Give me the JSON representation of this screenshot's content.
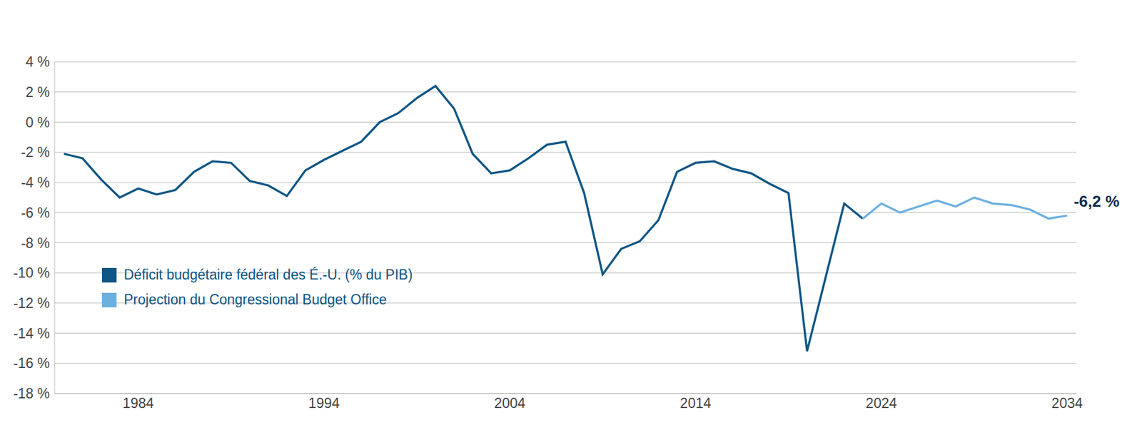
{
  "chart_data": {
    "type": "line",
    "x": [
      1980,
      1981,
      1982,
      1983,
      1984,
      1985,
      1986,
      1987,
      1988,
      1989,
      1990,
      1991,
      1992,
      1993,
      1994,
      1995,
      1996,
      1997,
      1998,
      1999,
      2000,
      2001,
      2002,
      2003,
      2004,
      2005,
      2006,
      2007,
      2008,
      2009,
      2010,
      2011,
      2012,
      2013,
      2014,
      2015,
      2016,
      2017,
      2018,
      2019,
      2020,
      2021,
      2022,
      2023,
      2024,
      2025,
      2026,
      2027,
      2028,
      2029,
      2030,
      2031,
      2032,
      2033,
      2034
    ],
    "series": [
      {
        "name": "Déficit budgétaire fédéral des É.-U. (% du PIB)",
        "color": "#0d5585",
        "values": [
          -2.1,
          -2.4,
          -3.8,
          -5.0,
          -4.4,
          -4.8,
          -4.5,
          -3.3,
          -2.6,
          -2.7,
          -3.9,
          -4.2,
          -4.9,
          -3.2,
          -2.5,
          -1.9,
          -1.3,
          0.0,
          0.6,
          1.6,
          2.4,
          0.9,
          -2.1,
          -3.4,
          -3.2,
          -2.4,
          -1.5,
          -1.3,
          -4.7,
          -10.1,
          -8.4,
          -7.9,
          -6.5,
          -3.3,
          -2.7,
          -2.6,
          -3.1,
          -3.4,
          -4.1,
          -4.7,
          -15.2,
          -10.3,
          -5.4,
          -6.4,
          null,
          null,
          null,
          null,
          null,
          null,
          null,
          null,
          null,
          null,
          null
        ]
      },
      {
        "name": "Projection du Congressional Budget Office",
        "color": "#6cb0e0",
        "values": [
          null,
          null,
          null,
          null,
          null,
          null,
          null,
          null,
          null,
          null,
          null,
          null,
          null,
          null,
          null,
          null,
          null,
          null,
          null,
          null,
          null,
          null,
          null,
          null,
          null,
          null,
          null,
          null,
          null,
          null,
          null,
          null,
          null,
          null,
          null,
          null,
          null,
          null,
          null,
          null,
          null,
          null,
          null,
          -6.4,
          -5.4,
          -6.0,
          -5.6,
          -5.2,
          -5.6,
          -5.0,
          -5.4,
          -5.5,
          -5.8,
          -6.4,
          -6.2
        ]
      }
    ],
    "xlim": [
      1979.5,
      2034.5
    ],
    "xticks": [
      1984,
      1994,
      2004,
      2014,
      2024,
      2034
    ],
    "ylim": [
      -18,
      4
    ],
    "yticks": [
      {
        "value": -18,
        "label": "-18 %"
      },
      {
        "value": -16,
        "label": "-16 %"
      },
      {
        "value": -14,
        "label": "-14 %"
      },
      {
        "value": -12,
        "label": "-12 %"
      },
      {
        "value": -10,
        "label": "-10 %"
      },
      {
        "value": -8,
        "label": "-8 %"
      },
      {
        "value": -6,
        "label": "-6 %"
      },
      {
        "value": -4,
        "label": "-4 %"
      },
      {
        "value": -2,
        "label": "-2 %"
      },
      {
        "value": 0,
        "label": "0 %"
      },
      {
        "value": 2,
        "label": "2 %"
      },
      {
        "value": 4,
        "label": "4 %"
      }
    ],
    "grid": true,
    "legend": "lower left",
    "annotations": [
      {
        "text": "-6,2 %",
        "x": 2034,
        "y": -6.2
      }
    ]
  }
}
